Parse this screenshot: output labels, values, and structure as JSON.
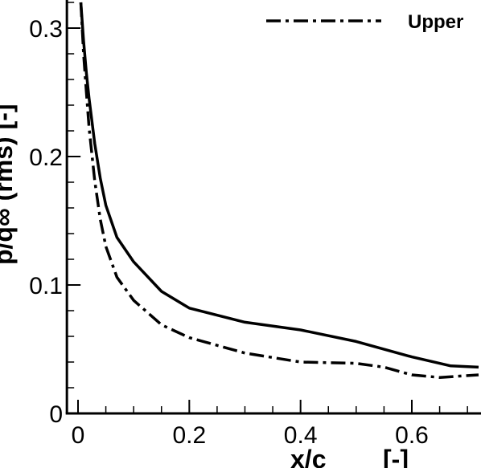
{
  "chart_data": {
    "type": "line",
    "xlabel": "x/c",
    "xlabel_unit": "[-]",
    "ylabel": "p/q∞ (rms) [-]",
    "xlim": [
      -0.02,
      0.72
    ],
    "ylim": [
      0,
      0.32
    ],
    "x_ticks": [
      {
        "value": 0,
        "label": "0"
      },
      {
        "value": 0.2,
        "label": "0.2"
      },
      {
        "value": 0.4,
        "label": "0.4"
      },
      {
        "value": 0.6,
        "label": "0.6"
      }
    ],
    "y_ticks": [
      {
        "value": 0,
        "label": "0"
      },
      {
        "value": 0.1,
        "label": "0.1"
      },
      {
        "value": 0.2,
        "label": "0.2"
      },
      {
        "value": 0.3,
        "label": "0.3"
      }
    ],
    "x_minor_step": 0.05,
    "y_minor_step": 0.02,
    "grid": false,
    "legend_position": "top-right",
    "series": [
      {
        "style": "solid",
        "x": [
          0.005,
          0.01,
          0.015,
          0.02,
          0.03,
          0.04,
          0.05,
          0.07,
          0.1,
          0.15,
          0.2,
          0.3,
          0.4,
          0.5,
          0.6,
          0.67,
          0.72
        ],
        "y": [
          0.32,
          0.29,
          0.265,
          0.245,
          0.21,
          0.183,
          0.162,
          0.137,
          0.118,
          0.095,
          0.082,
          0.071,
          0.065,
          0.056,
          0.044,
          0.037,
          0.036
        ]
      },
      {
        "name": "Upper",
        "style": "dashdot",
        "x": [
          0.005,
          0.01,
          0.015,
          0.02,
          0.03,
          0.04,
          0.05,
          0.07,
          0.1,
          0.15,
          0.2,
          0.3,
          0.4,
          0.5,
          0.55,
          0.6,
          0.65,
          0.72
        ],
        "y": [
          0.32,
          0.28,
          0.25,
          0.222,
          0.181,
          0.151,
          0.13,
          0.106,
          0.088,
          0.069,
          0.059,
          0.047,
          0.04,
          0.039,
          0.036,
          0.03,
          0.028,
          0.03
        ]
      }
    ]
  }
}
